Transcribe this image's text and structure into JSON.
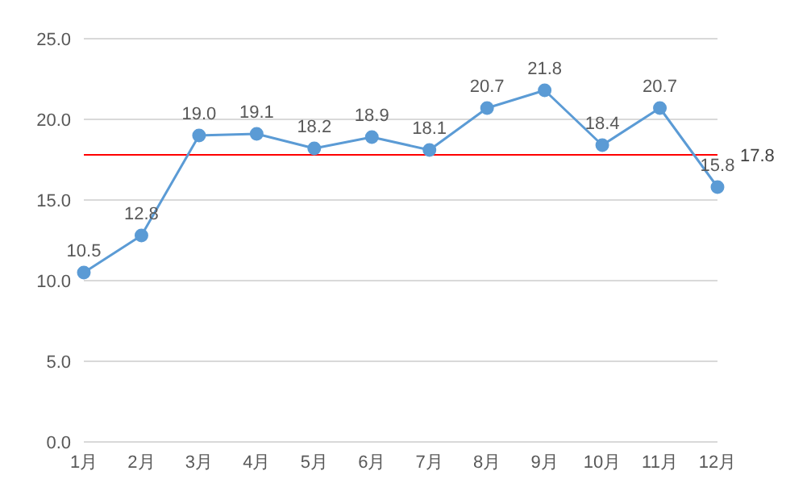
{
  "chart_data": {
    "type": "line",
    "categories": [
      "1月",
      "2月",
      "3月",
      "4月",
      "5月",
      "6月",
      "7月",
      "8月",
      "9月",
      "10月",
      "11月",
      "12月"
    ],
    "series": [
      {
        "color": "#5b9bd5",
        "values": [
          10.5,
          12.8,
          19.0,
          19.1,
          18.2,
          18.9,
          18.1,
          20.7,
          21.8,
          18.4,
          20.7,
          15.8
        ],
        "value_labels": [
          "10.5",
          "12.8",
          "19.0",
          "19.1",
          "18.2",
          "18.9",
          "18.1",
          "20.7",
          "21.8",
          "18.4",
          "20.7",
          "15.8"
        ]
      }
    ],
    "ylim": [
      0,
      25
    ],
    "yticks": [
      {
        "value": 0,
        "label": "0.0"
      },
      {
        "value": 5,
        "label": "5.0"
      },
      {
        "value": 10,
        "label": "10.0"
      },
      {
        "value": 15,
        "label": "15.0"
      },
      {
        "value": 20,
        "label": "20.0"
      },
      {
        "value": 25,
        "label": "25.0"
      }
    ],
    "grid": "y",
    "marker": "circle",
    "line_style": "solid",
    "ref_lines": [
      {
        "axis": "y",
        "value": 17.8,
        "label": "17.8",
        "color": "#ff0000"
      }
    ]
  }
}
